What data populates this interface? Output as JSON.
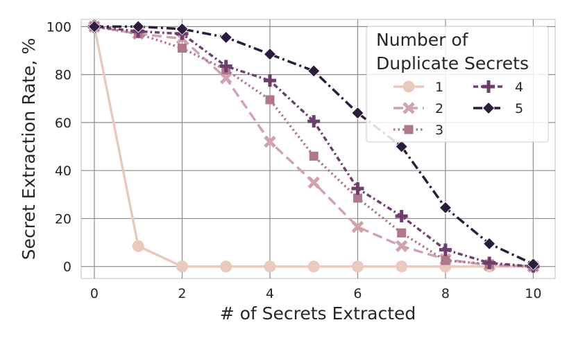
{
  "chart_data": {
    "type": "line",
    "x": [
      0,
      1,
      2,
      3,
      4,
      5,
      6,
      7,
      8,
      9,
      10
    ],
    "xlabel": "# of Secrets Extracted",
    "ylabel": "Secret Extraction Rate, %",
    "xlim": [
      -0.3,
      10.5
    ],
    "ylim": [
      -5,
      103
    ],
    "xticks": [
      "0",
      "2",
      "4",
      "6",
      "8",
      "10"
    ],
    "yticks": [
      "0",
      "20",
      "40",
      "60",
      "80",
      "100"
    ],
    "grid": true,
    "legend": {
      "title": "Number of\nDuplicate Secrets",
      "placement": "top-right"
    },
    "series": [
      {
        "name": "1",
        "values": [
          100,
          8.5,
          0,
          0,
          0,
          0,
          0,
          0,
          0,
          0,
          0
        ],
        "color": "#ebc9bd",
        "marker": "circle",
        "dash": "solid"
      },
      {
        "name": "2",
        "values": [
          100,
          97,
          95,
          78.5,
          52,
          35,
          16.5,
          8.5,
          3,
          0.5,
          0
        ],
        "color": "#d1a3ad",
        "marker": "x",
        "dash": "dashed"
      },
      {
        "name": "3",
        "values": [
          100,
          97,
          91,
          82,
          69.5,
          46,
          28.5,
          14,
          2.5,
          1,
          0
        ],
        "color": "#b0768d",
        "marker": "square",
        "dash": "dotted"
      },
      {
        "name": "4",
        "values": [
          100,
          98,
          97,
          83.5,
          77.5,
          60.5,
          32.5,
          21,
          7,
          1.5,
          0
        ],
        "color": "#6e3f6e",
        "marker": "plus",
        "dash": "dashdot-fine"
      },
      {
        "name": "5",
        "values": [
          100,
          100,
          99,
          95.5,
          88.5,
          81.5,
          64,
          50,
          24.5,
          9.5,
          1
        ],
        "color": "#2b1b3d",
        "marker": "diamond",
        "dash": "dashdot"
      }
    ]
  }
}
